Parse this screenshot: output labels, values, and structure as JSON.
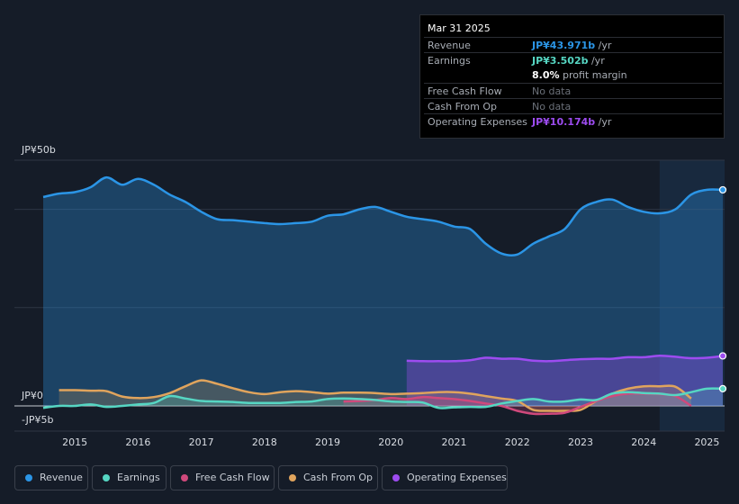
{
  "tooltip": {
    "date": "Mar 31 2025",
    "rows": [
      {
        "label": "Revenue",
        "value": "JP¥43.971b",
        "unit": " /yr",
        "color": "#2b95e6"
      },
      {
        "label": "Earnings",
        "value": "JP¥3.502b",
        "unit": " /yr",
        "color": "#56d6c3"
      },
      {
        "label": "",
        "value": "8.0%",
        "unit": " profit margin",
        "color": "#ffffff"
      },
      {
        "label": "Free Cash Flow",
        "nodata": "No data"
      },
      {
        "label": "Cash From Op",
        "nodata": "No data"
      },
      {
        "label": "Operating Expenses",
        "value": "JP¥10.174b",
        "unit": " /yr",
        "color": "#9d4cf0"
      }
    ]
  },
  "legend": [
    {
      "label": "Revenue",
      "color": "#2b95e6"
    },
    {
      "label": "Earnings",
      "color": "#56d6c3"
    },
    {
      "label": "Free Cash Flow",
      "color": "#d0497c"
    },
    {
      "label": "Cash From Op",
      "color": "#e0a45d"
    },
    {
      "label": "Operating Expenses",
      "color": "#9d4cf0"
    }
  ],
  "chart_data": {
    "type": "line",
    "title": "",
    "ylabel": "",
    "y_tick_labels": [
      "JP¥50b",
      "JP¥0",
      "-JP¥5b"
    ],
    "ylim": [
      -5,
      50
    ],
    "x_ticks": [
      "2015",
      "2016",
      "2017",
      "2018",
      "2019",
      "2020",
      "2021",
      "2022",
      "2023",
      "2024",
      "2025"
    ],
    "xlim": [
      2014.5,
      2025.25
    ],
    "forecast_start": 2024.25,
    "series": [
      {
        "name": "Revenue",
        "color": "#2b95e6",
        "area": true,
        "x": [
          2014.5,
          2014.75,
          2015.0,
          2015.25,
          2015.5,
          2015.75,
          2016.0,
          2016.25,
          2016.5,
          2016.75,
          2017.0,
          2017.25,
          2017.5,
          2017.75,
          2018.0,
          2018.25,
          2018.5,
          2018.75,
          2019.0,
          2019.25,
          2019.5,
          2019.75,
          2020.0,
          2020.25,
          2020.5,
          2020.75,
          2021.0,
          2021.25,
          2021.5,
          2021.75,
          2022.0,
          2022.25,
          2022.5,
          2022.75,
          2023.0,
          2023.25,
          2023.5,
          2023.75,
          2024.0,
          2024.25,
          2024.5,
          2024.75,
          2025.0,
          2025.25
        ],
        "y": [
          42.5,
          43.2,
          43.5,
          44.5,
          46.5,
          45.0,
          46.2,
          45.0,
          43.0,
          41.5,
          39.5,
          38.0,
          37.8,
          37.5,
          37.2,
          37.0,
          37.2,
          37.5,
          38.7,
          39.0,
          40.0,
          40.5,
          39.5,
          38.5,
          38.0,
          37.5,
          36.5,
          36.0,
          33.0,
          31.0,
          30.8,
          33.0,
          34.5,
          36.0,
          40.0,
          41.5,
          42.0,
          40.5,
          39.5,
          39.2,
          40.0,
          43.0,
          43.971,
          43.971
        ]
      },
      {
        "name": "Earnings",
        "color": "#56d6c3",
        "area": true,
        "x": [
          2014.5,
          2014.75,
          2015.0,
          2015.25,
          2015.5,
          2015.75,
          2016.0,
          2016.25,
          2016.5,
          2016.75,
          2017.0,
          2017.25,
          2017.5,
          2017.75,
          2018.0,
          2018.25,
          2018.5,
          2018.75,
          2019.0,
          2019.25,
          2019.5,
          2019.75,
          2020.0,
          2020.25,
          2020.5,
          2020.75,
          2021.0,
          2021.25,
          2021.5,
          2021.75,
          2022.0,
          2022.25,
          2022.5,
          2022.75,
          2023.0,
          2023.25,
          2023.5,
          2023.75,
          2024.0,
          2024.25,
          2024.5,
          2024.75,
          2025.0,
          2025.25
        ],
        "y": [
          -0.4,
          0.0,
          0.0,
          0.3,
          -0.2,
          0.0,
          0.3,
          0.6,
          2.0,
          1.5,
          1.0,
          0.9,
          0.8,
          0.6,
          0.6,
          0.6,
          0.8,
          0.9,
          1.4,
          1.5,
          1.4,
          1.2,
          0.9,
          0.8,
          0.7,
          -0.4,
          -0.3,
          -0.2,
          -0.2,
          0.5,
          1.0,
          1.4,
          0.9,
          0.9,
          1.3,
          1.2,
          2.5,
          2.8,
          2.6,
          2.5,
          2.2,
          2.8,
          3.502,
          3.502
        ]
      },
      {
        "name": "Free Cash Flow",
        "color": "#d0497c",
        "area": true,
        "x": [
          2019.25,
          2019.5,
          2019.75,
          2020.0,
          2020.25,
          2020.5,
          2020.75,
          2021.0,
          2021.25,
          2021.5,
          2021.75,
          2022.0,
          2022.25,
          2022.5,
          2022.75,
          2023.0,
          2023.25,
          2023.5,
          2023.75,
          2024.0,
          2024.25,
          2024.5,
          2024.75
        ],
        "y": [
          0.9,
          1.0,
          1.2,
          1.6,
          1.4,
          1.8,
          1.6,
          1.4,
          1.0,
          0.5,
          0.0,
          -1.0,
          -1.6,
          -1.6,
          -1.4,
          -0.2,
          1.0,
          2.0,
          2.5,
          2.5,
          2.4,
          2.0,
          0.0
        ]
      },
      {
        "name": "Cash From Op",
        "color": "#e0a45d",
        "area": true,
        "x": [
          2014.75,
          2015.0,
          2015.25,
          2015.5,
          2015.75,
          2016.0,
          2016.25,
          2016.5,
          2016.75,
          2017.0,
          2017.25,
          2017.5,
          2017.75,
          2018.0,
          2018.25,
          2018.5,
          2018.75,
          2019.0,
          2019.25,
          2019.5,
          2019.75,
          2020.0,
          2020.25,
          2020.5,
          2020.75,
          2021.0,
          2021.25,
          2021.5,
          2021.75,
          2022.0,
          2022.25,
          2022.5,
          2022.75,
          2023.0,
          2023.25,
          2023.5,
          2023.75,
          2024.0,
          2024.25,
          2024.5,
          2024.75
        ],
        "y": [
          3.2,
          3.2,
          3.1,
          3.0,
          1.9,
          1.6,
          1.8,
          2.6,
          4.0,
          5.2,
          4.5,
          3.6,
          2.8,
          2.4,
          2.8,
          3.0,
          2.8,
          2.5,
          2.7,
          2.7,
          2.6,
          2.4,
          2.5,
          2.6,
          2.8,
          2.8,
          2.5,
          2.0,
          1.5,
          1.0,
          -0.8,
          -1.0,
          -1.0,
          -0.8,
          1.0,
          2.5,
          3.5,
          4.0,
          4.0,
          3.9,
          1.5
        ]
      },
      {
        "name": "Operating Expenses",
        "color": "#9d4cf0",
        "area": true,
        "x": [
          2020.25,
          2020.5,
          2020.75,
          2021.0,
          2021.25,
          2021.5,
          2021.75,
          2022.0,
          2022.25,
          2022.5,
          2022.75,
          2023.0,
          2023.25,
          2023.5,
          2023.75,
          2024.0,
          2024.25,
          2024.5,
          2024.75,
          2025.0,
          2025.25
        ],
        "y": [
          9.2,
          9.1,
          9.1,
          9.1,
          9.3,
          9.8,
          9.6,
          9.6,
          9.2,
          9.1,
          9.3,
          9.5,
          9.6,
          9.6,
          9.9,
          9.9,
          10.2,
          10.0,
          9.7,
          9.8,
          10.174
        ]
      }
    ]
  }
}
